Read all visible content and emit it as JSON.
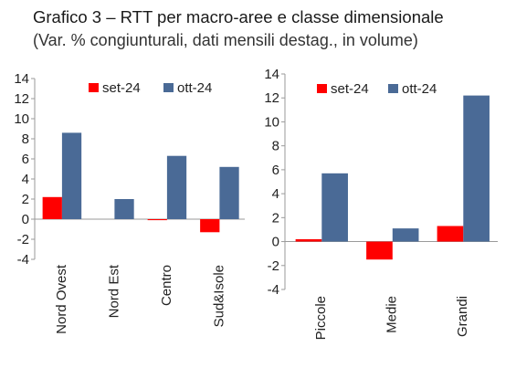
{
  "header": {
    "title": "Grafico 3 – RTT per macro-aree e classe dimensionale",
    "subtitle": "(Var. % congiunturali, dati mensili destag., in volume)"
  },
  "colors": {
    "set_24": "#ff0000",
    "ott_24": "#4a6a96",
    "axis": "#9a9a9a"
  },
  "chart_data": [
    {
      "type": "bar",
      "categories": [
        "Nord Ovest",
        "Nord Est",
        "Centro",
        "Sud&Isole"
      ],
      "series": [
        {
          "name": "set-24",
          "values": [
            2.2,
            0.0,
            -0.1,
            -1.3
          ]
        },
        {
          "name": "ott-24",
          "values": [
            8.6,
            2.0,
            6.3,
            5.2
          ]
        }
      ],
      "ylim": [
        -4,
        14
      ],
      "yticks": [
        -4,
        -2,
        0,
        2,
        4,
        6,
        8,
        10,
        12,
        14
      ],
      "ytick_labels": [
        "-4",
        "-2",
        "0",
        "2",
        "4",
        "6",
        "8",
        "10",
        "12",
        "14"
      ],
      "grid": false,
      "legend": "top-right"
    },
    {
      "type": "bar",
      "categories": [
        "Piccole",
        "Medie",
        "Grandi"
      ],
      "series": [
        {
          "name": "set-24",
          "values": [
            0.2,
            -1.5,
            1.3
          ]
        },
        {
          "name": "ott-24",
          "values": [
            5.7,
            1.1,
            12.2
          ]
        }
      ],
      "ylim": [
        -4,
        14
      ],
      "yticks": [
        -4,
        -2,
        0,
        2,
        4,
        6,
        8,
        10,
        12,
        14
      ],
      "ytick_labels": [
        "-4",
        "-2",
        "0",
        "2",
        "4",
        "6",
        "8",
        "10",
        "12",
        "14"
      ],
      "grid": false,
      "legend": "top-right"
    }
  ]
}
